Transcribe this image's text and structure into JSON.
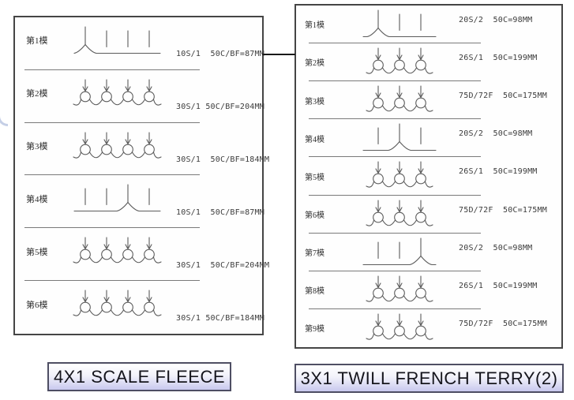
{
  "left_panel": {
    "title": "4X1 SCALE FLEECE",
    "rows": [
      {
        "label": "第1模",
        "spec": "10S/1  50C/BF=87MM",
        "needles": [
          "tuck",
          "miss",
          "miss",
          "miss"
        ]
      },
      {
        "label": "第2模",
        "spec": "30S/1 50C/BF=204MM",
        "needles": [
          "knit",
          "knit",
          "knit",
          "knit"
        ]
      },
      {
        "label": "第3模",
        "spec": "30S/1  50C/BF=184MM",
        "needles": [
          "knit",
          "knit",
          "knit",
          "knit"
        ]
      },
      {
        "label": "第4模",
        "spec": "10S/1  50C/BF=87MM",
        "needles": [
          "miss",
          "miss",
          "tuck",
          "miss"
        ]
      },
      {
        "label": "第5模",
        "spec": "30S/1  50C/BF=204MM",
        "needles": [
          "knit",
          "knit",
          "knit",
          "knit"
        ]
      },
      {
        "label": "第6模",
        "spec": "30S/1 50C/BF=184MM",
        "needles": [
          "knit",
          "knit",
          "knit",
          "knit"
        ]
      }
    ]
  },
  "right_panel": {
    "title": "3X1 TWILL FRENCH TERRY(2)",
    "rows": [
      {
        "label": "第1模",
        "spec": "20S/2  50C=98MM",
        "needles": [
          "tuck",
          "miss",
          "miss"
        ]
      },
      {
        "label": "第2模",
        "spec": "26S/1  50C=199MM",
        "needles": [
          "knit",
          "knit",
          "knit"
        ]
      },
      {
        "label": "第3模",
        "spec": "75D/72F  50C=175MM",
        "needles": [
          "knit",
          "knit",
          "knit"
        ]
      },
      {
        "label": "第4模",
        "spec": "20S/2  50C=98MM",
        "needles": [
          "miss",
          "tuck",
          "miss"
        ]
      },
      {
        "label": "第5模",
        "spec": "26S/1  50C=199MM",
        "needles": [
          "knit",
          "knit",
          "knit"
        ]
      },
      {
        "label": "第6模",
        "spec": "75D/72F  50C=175MM",
        "needles": [
          "knit",
          "knit",
          "knit"
        ]
      },
      {
        "label": "第7模",
        "spec": "20S/2  50C=98MM",
        "needles": [
          "miss",
          "miss",
          "tuck"
        ]
      },
      {
        "label": "第8模",
        "spec": "26S/1  50C=199MM",
        "needles": [
          "knit",
          "knit",
          "knit"
        ]
      },
      {
        "label": "第9模",
        "spec": "75D/72F  50C=175MM",
        "needles": [
          "knit",
          "knit",
          "knit"
        ]
      }
    ]
  },
  "colors": {
    "panel_border": "#454545",
    "separator": "#7a7a7a",
    "diagram_stroke": "#5b5b5b",
    "connector": "#1a1a1a",
    "title_box_border": "#4e4e63",
    "title_box_gradient_bottom": "#c8c8ee"
  }
}
